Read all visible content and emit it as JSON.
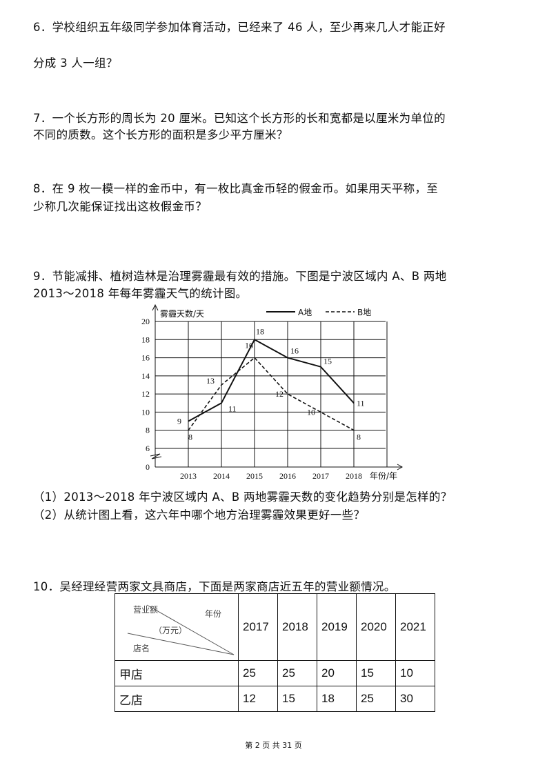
{
  "questions": {
    "q6": [
      "6．学校组织五年级同学参加体育活动，已经来了 46 人，至少再来几人才能正好",
      "分成 3 人一组？"
    ],
    "q7": [
      "7．一个长方形的周长为 20 厘米。已知这个长方形的长和宽都是以厘米为单位的",
      "不同的质数。这个长方形的面积是多少平方厘米？"
    ],
    "q8": [
      "8．在 9 枚一模一样的金币中，有一枚比真金币轻的假金币。如果用天平称，至",
      "少称几次能保证找出这枚假金币？"
    ],
    "q9": [
      "9．节能减排、植树造林是治理雾霾最有效的措施。下图是宁波区域内 A、B 两地",
      "2013～2018 年每年雾霾天气的统计图。"
    ],
    "q9_sub": [
      "（1）2013～2018 年宁波区域内 A、B 两地雾霾天数的变化趋势分别是怎样的？",
      "（2）从统计图上看，这六年中哪个地方治理雾霾效果更好一些？"
    ],
    "q10": "10．吴经理经营两家文具商店，下面是两家商店近五年的营业额情况。"
  },
  "chart_data": {
    "type": "line",
    "ylabel": "雾霾天数/天",
    "xlabel": "年份/年",
    "categories": [
      "2013",
      "2014",
      "2015",
      "2016",
      "2017",
      "2018"
    ],
    "yticks": [
      "0",
      "6",
      "8",
      "10",
      "12",
      "14",
      "16",
      "18",
      "20"
    ],
    "ylim": [
      0,
      20
    ],
    "axis_break": true,
    "grid": true,
    "legend_position": "top-right",
    "series": [
      {
        "name": "A地",
        "style": "solid",
        "values": [
          9,
          11,
          18,
          16,
          15,
          11
        ]
      },
      {
        "name": "B地",
        "style": "dashed",
        "values": [
          8,
          13,
          16,
          12,
          10,
          8
        ]
      }
    ]
  },
  "table": {
    "header_corner": {
      "top_left": "营业额",
      "top_right": "年份",
      "middle": "（万元）",
      "bottom": "店名"
    },
    "years": [
      "2017",
      "2018",
      "2019",
      "2020",
      "2021"
    ],
    "rows": [
      {
        "name": "甲店",
        "values": [
          "25",
          "25",
          "20",
          "15",
          "10"
        ]
      },
      {
        "name": "乙店",
        "values": [
          "12",
          "15",
          "18",
          "25",
          "30"
        ]
      }
    ]
  },
  "footer": "第 2 页 共 31 页"
}
